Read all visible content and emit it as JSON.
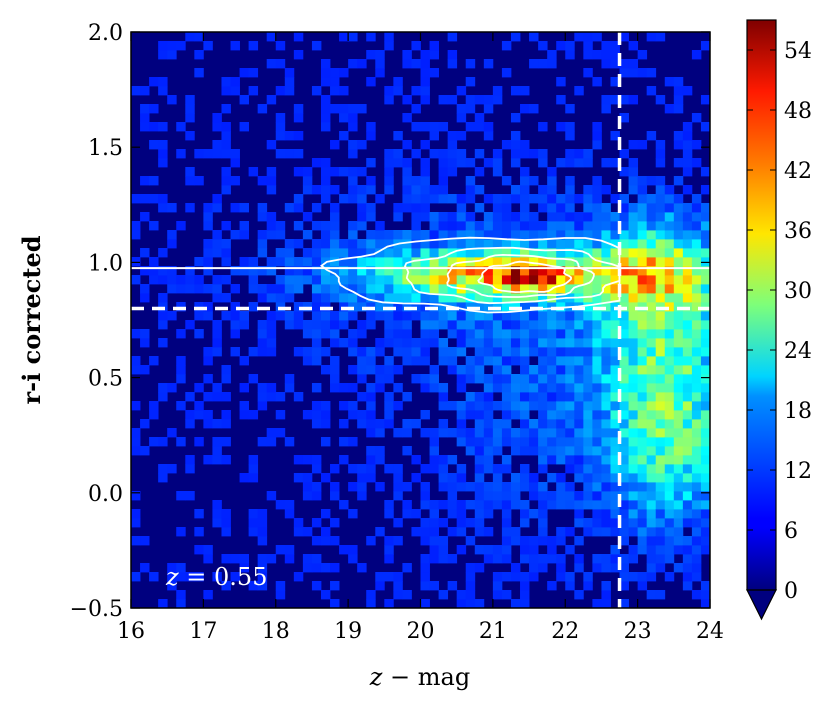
{
  "chart_data": {
    "type": "heatmap",
    "title": "",
    "xlabel_var": "z",
    "xlabel_rest": " − mag",
    "ylabel": "r-i corrected",
    "xlim": [
      16,
      24
    ],
    "ylim": [
      -0.5,
      2.0
    ],
    "xticks": [
      16,
      17,
      18,
      19,
      20,
      21,
      22,
      23,
      24
    ],
    "yticks": [
      -0.5,
      0.0,
      0.5,
      1.0,
      1.5,
      2.0
    ],
    "ytick_labels": [
      "−0.5",
      "0.0",
      "0.5",
      "1.0",
      "1.5",
      "2.0"
    ],
    "colorbar": {
      "range": [
        0,
        57
      ],
      "ticks": [
        0,
        6,
        12,
        18,
        24,
        30,
        36,
        42,
        48,
        54
      ],
      "colormap": "jet",
      "extend": "min"
    },
    "annotation_var": "z",
    "annotation_rest": " = 0.55",
    "lines": {
      "red_sequence_y": 0.975,
      "red_sequence_x_start": 16,
      "color_cut_y": 0.8,
      "mag_limit_x": 22.75
    },
    "density_components": [
      {
        "x": 21.2,
        "y": 0.95,
        "sx": 1.25,
        "sy": 0.07,
        "amp": 34
      },
      {
        "x": 21.55,
        "y": 0.93,
        "sx": 0.35,
        "sy": 0.045,
        "amp": 18
      },
      {
        "x": 23.3,
        "y": 0.95,
        "sx": 0.55,
        "sy": 0.15,
        "amp": 22
      },
      {
        "x": 23.4,
        "y": 0.5,
        "sx": 0.6,
        "sy": 0.3,
        "amp": 18
      },
      {
        "x": 23.5,
        "y": 0.15,
        "sx": 0.5,
        "sy": 0.2,
        "amp": 9
      },
      {
        "x": 22.0,
        "y": 0.55,
        "sx": 1.3,
        "sy": 0.45,
        "amp": 4
      },
      {
        "x": 20.0,
        "y": 0.95,
        "sx": 1.6,
        "sy": 0.25,
        "amp": 3
      }
    ],
    "background_level": 1.2,
    "contour_levels": [
      6,
      14,
      22,
      30
    ]
  }
}
